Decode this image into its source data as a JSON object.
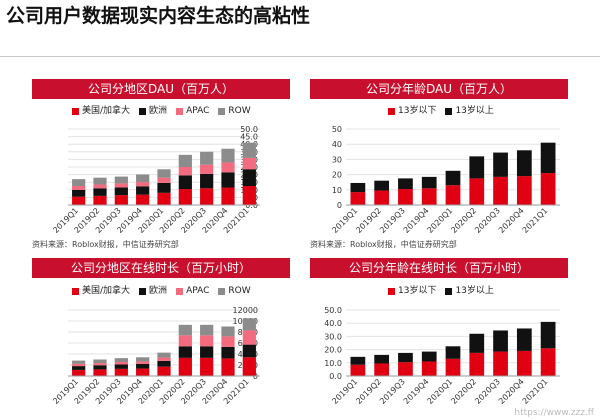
{
  "page": {
    "title": "公司用户数据现实内容生态的高粘性",
    "watermark": "https://www.zzz.ff"
  },
  "colors": {
    "header_red": "#c8102e",
    "red": "#e00012",
    "black": "#111111",
    "pink": "#f26b7e",
    "gray": "#8c8c8c"
  },
  "source_text": "资料来源：Roblox财报，中信证券研究部",
  "chart_data": [
    {
      "type": "bar",
      "stacked": true,
      "panel_title": "公司分地区DAU（百万人）",
      "categories": [
        "2019Q1",
        "2019Q2",
        "2019Q3",
        "2019Q4",
        "2020Q1",
        "2020Q2",
        "2020Q3",
        "2020Q4",
        "2021Q1"
      ],
      "series": [
        {
          "name": "美国/加拿大",
          "color": "#e00012",
          "values": [
            5.5,
            6.0,
            6.5,
            6.8,
            8.0,
            10.5,
            11.0,
            11.5,
            12.5
          ]
        },
        {
          "name": "欧洲",
          "color": "#111111",
          "values": [
            4.5,
            5.0,
            5.0,
            5.5,
            6.5,
            9.0,
            9.5,
            10.0,
            11.0
          ]
        },
        {
          "name": "APAC",
          "color": "#f26b7e",
          "values": [
            2.5,
            2.5,
            2.7,
            2.8,
            3.5,
            5.5,
            6.0,
            6.5,
            7.5
          ]
        },
        {
          "name": "ROW",
          "color": "#8c8c8c",
          "values": [
            4.5,
            4.5,
            4.5,
            5.0,
            5.5,
            8.0,
            8.5,
            9.0,
            10.0
          ]
        }
      ],
      "ylim": [
        0,
        50
      ],
      "yticks": [
        "0.0",
        "5.0",
        "10.0",
        "15.0",
        "20.0",
        "25.0",
        "30.0",
        "35.0",
        "40.0",
        "45.0",
        "50.0"
      ],
      "show_source": true
    },
    {
      "type": "bar",
      "stacked": true,
      "panel_title": "公司分年龄DAU（百万人）",
      "categories": [
        "2019Q1",
        "2019Q2",
        "2019Q3",
        "2019Q4",
        "2020Q1",
        "2020Q2",
        "2020Q3",
        "2020Q4",
        "2021Q1"
      ],
      "series": [
        {
          "name": "13岁以下",
          "color": "#e00012",
          "values": [
            8.5,
            9.5,
            10.5,
            11.0,
            13.0,
            17.5,
            18.5,
            19.0,
            21.0
          ]
        },
        {
          "name": "13岁以上",
          "color": "#111111",
          "values": [
            6.0,
            6.5,
            7.0,
            7.5,
            9.5,
            14.5,
            16.0,
            17.0,
            20.0
          ]
        }
      ],
      "ylim": [
        0,
        50
      ],
      "yticks": [
        "0",
        "10",
        "20",
        "30",
        "40",
        "50"
      ],
      "show_source": true
    },
    {
      "type": "bar",
      "stacked": true,
      "panel_title": "公司分地区在线时长（百万小时）",
      "categories": [
        "2019Q1",
        "2019Q2",
        "2019Q3",
        "2019Q4",
        "2020Q1",
        "2020Q2",
        "2020Q3",
        "2020Q4",
        "2021Q1"
      ],
      "series": [
        {
          "name": "美国/加拿大",
          "color": "#e00012",
          "values": [
            1100,
            1200,
            1300,
            1350,
            1700,
            3300,
            3300,
            3200,
            3400
          ]
        },
        {
          "name": "欧洲",
          "color": "#111111",
          "values": [
            700,
            750,
            800,
            850,
            1050,
            2100,
            2100,
            2100,
            2300
          ]
        },
        {
          "name": "APAC",
          "color": "#f26b7e",
          "values": [
            400,
            400,
            450,
            450,
            600,
            2000,
            2000,
            1900,
            2600
          ]
        },
        {
          "name": "ROW",
          "color": "#8c8c8c",
          "values": [
            600,
            650,
            700,
            750,
            900,
            1900,
            1900,
            1800,
            2200
          ]
        }
      ],
      "ylim": [
        0,
        12000
      ],
      "yticks": [
        "0",
        "2000",
        "4000",
        "6000",
        "8000",
        "10000",
        "12000"
      ],
      "show_source": false
    },
    {
      "type": "bar",
      "stacked": true,
      "panel_title": "公司分年龄在线时长（百万小时）",
      "categories": [
        "2019Q1",
        "2019Q2",
        "2019Q3",
        "2019Q4",
        "2020Q1",
        "2020Q2",
        "2020Q3",
        "2020Q4",
        "2021Q1"
      ],
      "series": [
        {
          "name": "13岁以下",
          "color": "#e00012",
          "values": [
            8.5,
            9.5,
            10.5,
            11.0,
            13.0,
            17.5,
            18.5,
            19.0,
            21.0
          ]
        },
        {
          "name": "13岁以上",
          "color": "#111111",
          "values": [
            6.0,
            6.5,
            7.0,
            7.5,
            9.5,
            14.5,
            16.0,
            17.0,
            20.0
          ]
        }
      ],
      "ylim": [
        0,
        50
      ],
      "yticks": [
        "0.0",
        "10.0",
        "20.0",
        "30.0",
        "40.0",
        "50.0"
      ],
      "show_source": false
    }
  ]
}
